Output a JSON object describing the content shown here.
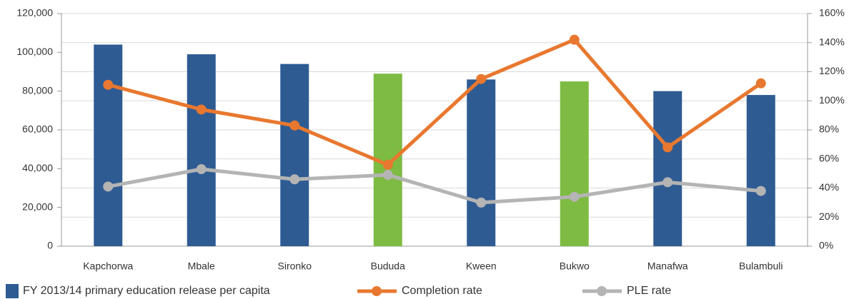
{
  "chart_data": {
    "type": "bar",
    "categories": [
      "Kapchorwa",
      "Mbale",
      "Sironko",
      "Bududa",
      "Kween",
      "Bukwo",
      "Manafwa",
      "Bulambuli"
    ],
    "series": [
      {
        "name": "FY 2013/14 primary education release per capita",
        "type": "bar",
        "color": "#2f5b93",
        "colors": [
          "#2f5b93",
          "#2f5b93",
          "#2f5b93",
          "#7dbb42",
          "#2f5b93",
          "#7dbb42",
          "#2f5b93",
          "#2f5b93"
        ],
        "values": [
          104000,
          99000,
          94000,
          89000,
          86000,
          85000,
          80000,
          78000
        ]
      },
      {
        "name": "Completion rate",
        "type": "line",
        "axis": "y2",
        "color": "#e8782f",
        "values": [
          111,
          94,
          83,
          56,
          115,
          142,
          68,
          112
        ]
      },
      {
        "name": "PLE rate",
        "type": "line",
        "axis": "y2",
        "color": "#b4b4b4",
        "values": [
          41,
          53,
          46,
          49,
          30,
          34,
          44,
          38
        ]
      }
    ],
    "ylim": [
      0,
      120000
    ],
    "yticks": [
      0,
      {
        "value": 20000,
        "label": "20,000"
      },
      {
        "value": 40000,
        "label": "40,000"
      },
      {
        "value": 60000,
        "label": "60,000"
      },
      {
        "value": 80000,
        "label": "80,000"
      },
      {
        "value": 100000,
        "label": "100,000"
      },
      {
        "value": 120000,
        "label": "120,000"
      }
    ],
    "y2lim": [
      0,
      160
    ],
    "y2ticks": [
      {
        "value": 0,
        "label": "0%"
      },
      {
        "value": 20,
        "label": "20%"
      },
      {
        "value": 40,
        "label": "40%"
      },
      {
        "value": 60,
        "label": "60%"
      },
      {
        "value": 80,
        "label": "80%"
      },
      {
        "value": 100,
        "label": "100%"
      },
      {
        "value": 120,
        "label": "120%"
      },
      {
        "value": 140,
        "label": "140%"
      },
      {
        "value": 160,
        "label": "160%"
      }
    ],
    "grid": true
  }
}
